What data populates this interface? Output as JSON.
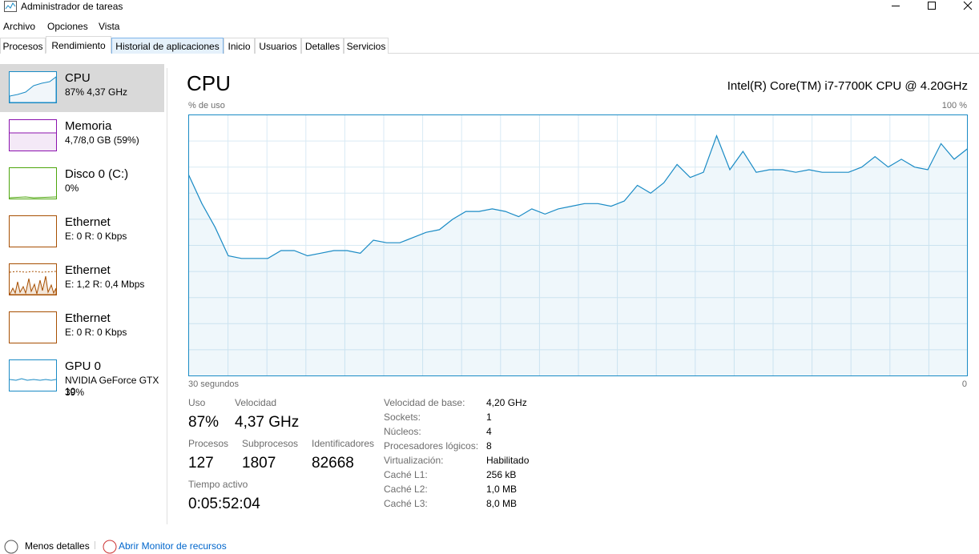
{
  "window": {
    "title": "Administrador de tareas"
  },
  "menu": [
    "Archivo",
    "Opciones",
    "Vista"
  ],
  "tabs": [
    "Procesos",
    "Rendimiento",
    "Historial de aplicaciones",
    "Inicio",
    "Usuarios",
    "Detalles",
    "Servicios"
  ],
  "sidebar": [
    {
      "name": "CPU",
      "detail": "87% 4,37 GHz"
    },
    {
      "name": "Memoria",
      "detail": "4,7/8,0 GB (59%)"
    },
    {
      "name": "Disco 0 (C:)",
      "detail": "0%"
    },
    {
      "name": "Ethernet",
      "detail": "E: 0 R: 0 Kbps"
    },
    {
      "name": "Ethernet",
      "detail": "E: 1,2 R: 0,4 Mbps"
    },
    {
      "name": "Ethernet",
      "detail": "E: 0 R: 0 Kbps"
    },
    {
      "name": "GPU 0",
      "detail": "NVIDIA GeForce GTX 10",
      "detail2": "39%"
    }
  ],
  "main": {
    "title": "CPU",
    "model": "Intel(R) Core(TM) i7-7700K CPU @ 4.20GHz",
    "graph": {
      "y_label": "% de uso",
      "max_label": "100 %",
      "x_start_label": "30 segundos",
      "x_end_label": "0",
      "ylim": [
        0,
        100
      ],
      "values": [
        77,
        66,
        57,
        46,
        45,
        45,
        45,
        48,
        48,
        46,
        47,
        48,
        48,
        47,
        52,
        51,
        51,
        53,
        55,
        56,
        60,
        63,
        63,
        64,
        63,
        61,
        64,
        62,
        64,
        65,
        66,
        66,
        65,
        67,
        73,
        70,
        74,
        81,
        76,
        78,
        92,
        79,
        86,
        78,
        79,
        79,
        78,
        79,
        78,
        78,
        78,
        80,
        84,
        80,
        83,
        80,
        79,
        89,
        83,
        87
      ]
    },
    "stats": [
      {
        "label": "Uso",
        "value": "87%"
      },
      {
        "label": "Velocidad",
        "value": "4,37 GHz"
      },
      {
        "label": "Procesos",
        "value": "127"
      },
      {
        "label": "Subprocesos",
        "value": "1807"
      },
      {
        "label": "Identificadores",
        "value": "82668"
      },
      {
        "label": "Tiempo activo",
        "value": "0:05:52:04"
      }
    ],
    "details": [
      [
        "Velocidad de base:",
        "4,20 GHz"
      ],
      [
        "Sockets:",
        "1"
      ],
      [
        "Núcleos:",
        "4"
      ],
      [
        "Procesadores lógicos:",
        "8"
      ],
      [
        "Virtualización:",
        "Habilitado"
      ],
      [
        "Caché L1:",
        "256 kB"
      ],
      [
        "Caché L2:",
        "1,0 MB"
      ],
      [
        "Caché L3:",
        "8,0 MB"
      ]
    ]
  },
  "footer": {
    "less": "Menos detalles",
    "monitor": "Abrir Monitor de recursos"
  }
}
